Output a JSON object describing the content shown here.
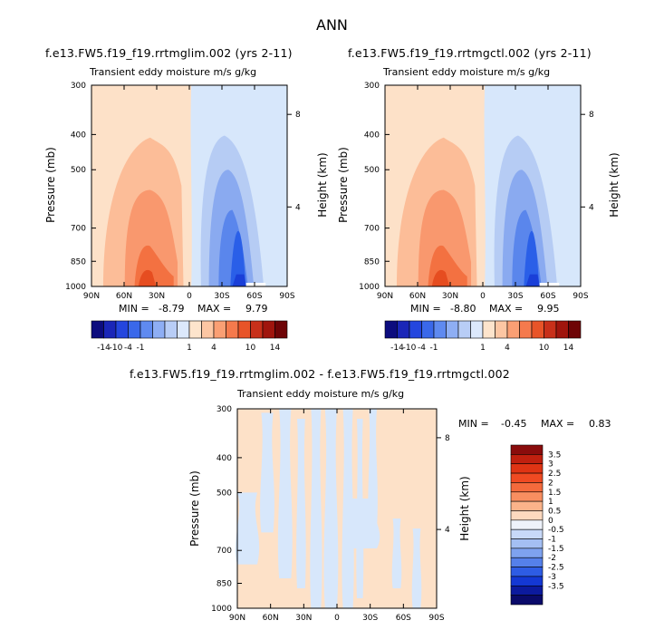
{
  "figure": {
    "title": "ANN"
  },
  "colors": {
    "warm_light": "#fde1c8",
    "warm_1": "#fcbd98",
    "warm_2": "#f9986e",
    "warm_3": "#f37141",
    "warm_4": "#e64d20",
    "cool_light": "#d7e7fb",
    "cool_1": "#b6ccf4",
    "cool_2": "#8aaaf0",
    "cool_3": "#5a86ec",
    "cool_4": "#2a5fe8",
    "cool_5": "#1a3fd8"
  },
  "chart_data": [
    {
      "type": "heatmap",
      "title": "f.e13.FW5.f19_f19.rrtmglim.002 (yrs 2-11)",
      "subtitle": "Transient eddy moisture m/s g/kg",
      "ylabel": "Pressure (mb)",
      "ylabel_right": "Height (km)",
      "x_ticks": [
        "90N",
        "60N",
        "30N",
        "0",
        "30S",
        "60S",
        "90S"
      ],
      "y_ticks": [
        "300",
        "400",
        "500",
        "700",
        "850",
        "1000"
      ],
      "y_ticks_right": [
        "8",
        "4"
      ],
      "min_label": "MIN =",
      "min": "-8.79",
      "max_label": "MAX =",
      "max": "9.79",
      "colorbar_labels": [
        "-14",
        "-10",
        "-4",
        "-1",
        "1",
        "4",
        "10",
        "14"
      ],
      "colorbar_colors": [
        "#0c0c7e",
        "#1a26b8",
        "#2446de",
        "#3a68ea",
        "#5f8af0",
        "#8eaef4",
        "#b8cdf6",
        "#dce8fb",
        "#fde4cc",
        "#fcc6a3",
        "#fa9f74",
        "#f57a4d",
        "#e85428",
        "#c8301a",
        "#a0150d",
        "#6e0406"
      ]
    },
    {
      "type": "heatmap",
      "title": "f.e13.FW5.f19_f19.rrtmgctl.002 (yrs 2-11)",
      "subtitle": "Transient eddy moisture m/s g/kg",
      "ylabel": "Pressure (mb)",
      "ylabel_right": "Height (km)",
      "x_ticks": [
        "90N",
        "60N",
        "30N",
        "0",
        "30S",
        "60S",
        "90S"
      ],
      "y_ticks": [
        "300",
        "400",
        "500",
        "700",
        "850",
        "1000"
      ],
      "y_ticks_right": [
        "8",
        "4"
      ],
      "min_label": "MIN =",
      "min": "-8.80",
      "max_label": "MAX =",
      "max": "9.95",
      "colorbar_labels": [
        "-14",
        "-10",
        "-4",
        "-1",
        "1",
        "4",
        "10",
        "14"
      ],
      "colorbar_colors": [
        "#0c0c7e",
        "#1a26b8",
        "#2446de",
        "#3a68ea",
        "#5f8af0",
        "#8eaef4",
        "#b8cdf6",
        "#dce8fb",
        "#fde4cc",
        "#fcc6a3",
        "#fa9f74",
        "#f57a4d",
        "#e85428",
        "#c8301a",
        "#a0150d",
        "#6e0406"
      ]
    },
    {
      "type": "heatmap",
      "title": "f.e13.FW5.f19_f19.rrtmglim.002 - f.e13.FW5.f19_f19.rrtmgctl.002",
      "subtitle": "Transient eddy moisture m/s g/kg",
      "ylabel": "Pressure (mb)",
      "ylabel_right": "Height (km)",
      "x_ticks": [
        "90N",
        "60N",
        "30N",
        "0",
        "30S",
        "60S",
        "90S"
      ],
      "y_ticks": [
        "300",
        "400",
        "500",
        "700",
        "850",
        "1000"
      ],
      "y_ticks_right": [
        "8",
        "4"
      ],
      "min_label": "MIN =",
      "min": "-0.45",
      "max_label": "MAX =",
      "max": "0.83",
      "colorbar_labels": [
        "3.5",
        "3",
        "2.5",
        "2",
        "1.5",
        "1",
        "0.5",
        "0",
        "-0.5",
        "-1",
        "-1.5",
        "-2",
        "-2.5",
        "-3",
        "-3.5"
      ],
      "colorbar_colors": [
        "#8a0c0c",
        "#c0200f",
        "#df3414",
        "#ef4a22",
        "#f46a3c",
        "#f88e60",
        "#fbb38a",
        "#fdd9bf",
        "#eef2fa",
        "#c8d9f8",
        "#a4bff3",
        "#7ea2ef",
        "#5580ea",
        "#2e5ce4",
        "#1438d4",
        "#0c1a9e",
        "#0a0a6a"
      ]
    }
  ]
}
